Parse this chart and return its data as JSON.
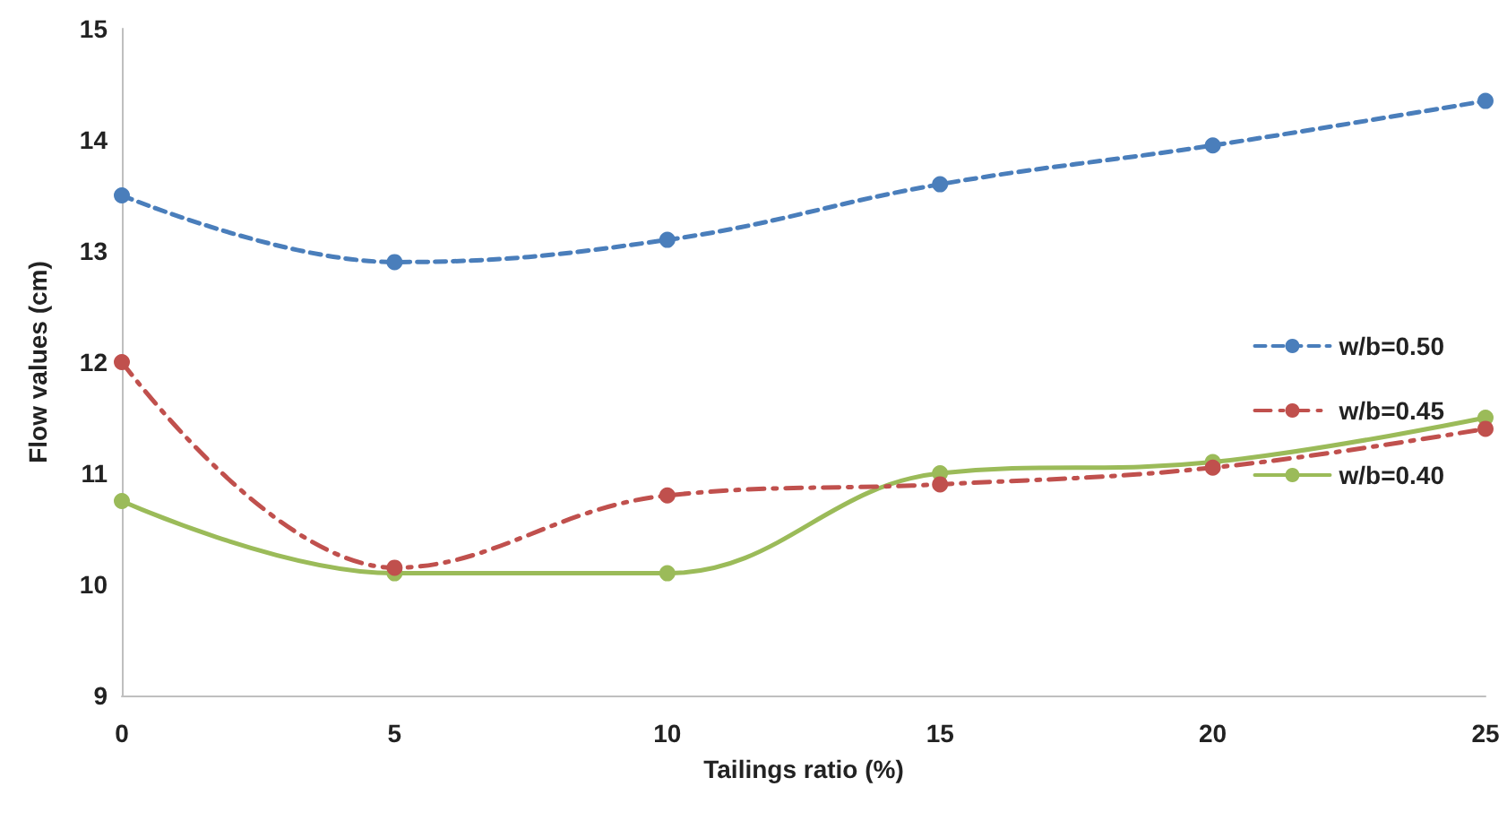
{
  "chart_data": {
    "type": "line",
    "xlabel": "Tailings ratio (%)",
    "ylabel": "Flow values (cm)",
    "x": [
      0,
      5,
      10,
      15,
      20,
      25
    ],
    "xlim": [
      0,
      25
    ],
    "xticks": [
      0,
      5,
      10,
      15,
      20,
      25
    ],
    "ylim": [
      9,
      15
    ],
    "yticks": [
      9,
      10,
      11,
      12,
      13,
      14,
      15
    ],
    "grid": false,
    "legend": "right",
    "marker": "circle",
    "series": [
      {
        "name": "w/b=0.50",
        "color": "#4a7ebb",
        "line_style": "dashed",
        "values": [
          13.5,
          12.9,
          13.1,
          13.6,
          13.95,
          14.35
        ]
      },
      {
        "name": "w/b=0.45",
        "color": "#c0504d",
        "line_style": "dashed",
        "values": [
          12.0,
          10.15,
          10.8,
          10.9,
          11.05,
          11.4
        ]
      },
      {
        "name": "w/b=0.40",
        "color": "#9bbb59",
        "line_style": "solid",
        "values": [
          10.75,
          10.1,
          10.1,
          11.0,
          11.1,
          11.5
        ]
      }
    ]
  }
}
